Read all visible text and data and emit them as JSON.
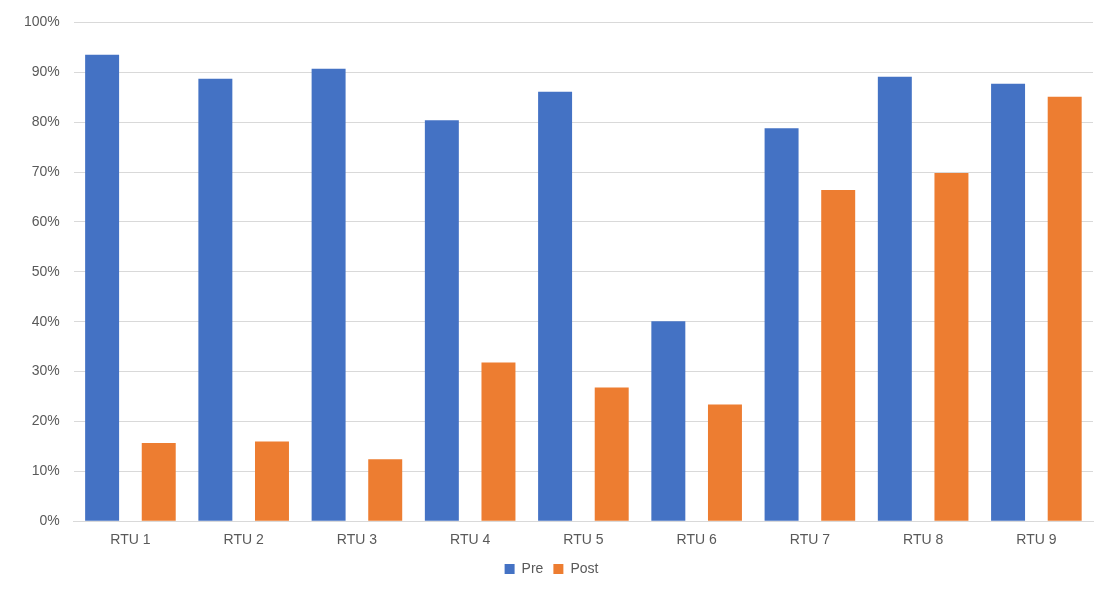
{
  "chart_data": {
    "type": "bar",
    "categories": [
      "RTU 1",
      "RTU 2",
      "RTU 3",
      "RTU 4",
      "RTU 5",
      "RTU 6",
      "RTU 7",
      "RTU 8",
      "RTU 9"
    ],
    "series": [
      {
        "name": "Pre",
        "color": "#4472c4",
        "values": [
          93.5,
          88.7,
          90.7,
          80.4,
          86.1,
          40.1,
          78.8,
          89.1,
          87.7
        ]
      },
      {
        "name": "Post",
        "color": "#ed7d31",
        "values": [
          15.7,
          16.0,
          12.4,
          31.8,
          26.8,
          23.4,
          66.4,
          69.8,
          85.1
        ]
      }
    ],
    "ylim": [
      0,
      100
    ],
    "yticks": [
      {
        "value": 0,
        "label": "0%"
      },
      {
        "value": 10,
        "label": "10%"
      },
      {
        "value": 20,
        "label": "20%"
      },
      {
        "value": 30,
        "label": "30%"
      },
      {
        "value": 40,
        "label": "40%"
      },
      {
        "value": 50,
        "label": "50%"
      },
      {
        "value": 60,
        "label": "60%"
      },
      {
        "value": 70,
        "label": "70%"
      },
      {
        "value": 80,
        "label": "80%"
      },
      {
        "value": 90,
        "label": "90%"
      },
      {
        "value": 100,
        "label": "100%"
      }
    ],
    "grid": "y",
    "legend": "bottom"
  }
}
